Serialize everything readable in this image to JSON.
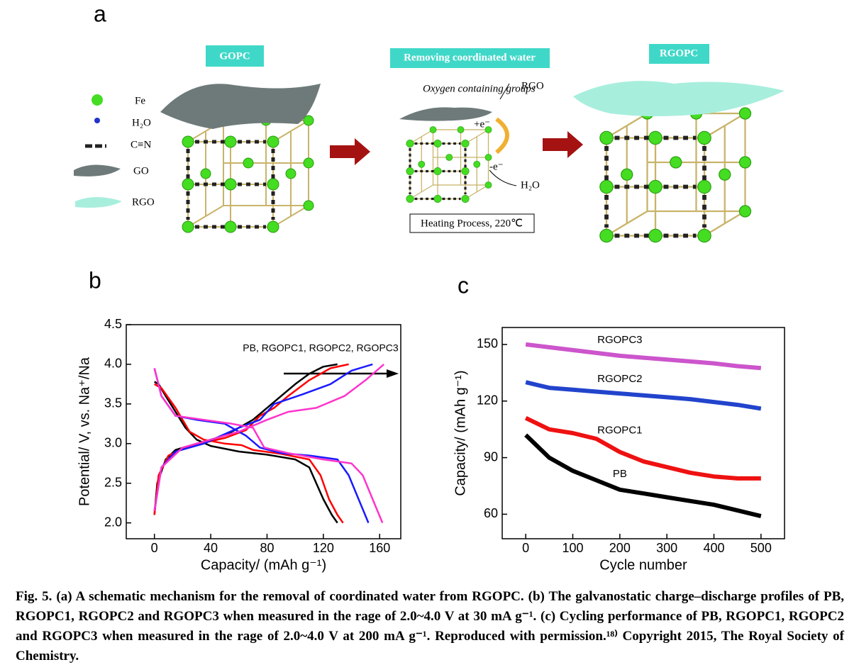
{
  "panel_a": {
    "label": "a",
    "titles": [
      "GOPC",
      "Removing coordinated water",
      "RGOPC"
    ],
    "legend": [
      "Fe",
      "H₂O",
      "C≡N",
      "GO",
      "RGO"
    ],
    "annotations": {
      "groups": "Oxygen containing groups",
      "rgo": "RGO",
      "plus_e": "+e⁻",
      "minus_e": "-e⁻",
      "water": "H₂O",
      "process": "Heating Process, 220℃"
    }
  },
  "chart_data": [
    {
      "type": "line",
      "panel_label": "b",
      "x_label": "Capacity/ (mAh g⁻¹)",
      "y_label": "Potential/ V, vs. Na⁺/Na",
      "annotation": "PB, RGOPC1, RGOPC2, RGOPC3",
      "xlim": [
        -20,
        175
      ],
      "ylim": [
        1.8,
        4.5
      ],
      "xticks": [
        0,
        40,
        80,
        120,
        160
      ],
      "yticks": [
        {
          "value": 2,
          "label": "2.0"
        },
        2.5,
        {
          "value": 3,
          "label": "3.0"
        },
        3.5,
        {
          "value": 4,
          "label": "4.0"
        },
        4.5
      ],
      "series": [
        {
          "color": "#000000",
          "x": [
            0,
            3,
            8,
            15,
            22,
            30,
            40,
            60,
            80,
            100,
            110,
            115,
            120,
            126,
            130,
            null,
            0,
            2,
            8,
            15,
            30,
            50,
            60,
            70,
            80,
            90,
            100,
            110,
            120,
            130
          ],
          "values": [
            3.78,
            3.75,
            3.6,
            3.4,
            3.2,
            3.05,
            2.97,
            2.9,
            2.86,
            2.8,
            2.7,
            2.5,
            2.3,
            2.1,
            2.0,
            null,
            2.1,
            2.5,
            2.8,
            2.92,
            3.0,
            3.1,
            3.2,
            3.3,
            3.45,
            3.6,
            3.75,
            3.88,
            3.97,
            4.0
          ]
        },
        {
          "color": "#ff0000",
          "x": [
            0,
            5,
            15,
            25,
            35,
            50,
            62,
            70,
            90,
            110,
            118,
            124,
            130,
            134,
            null,
            0,
            3,
            10,
            25,
            50,
            65,
            75,
            85,
            95,
            110,
            125,
            138
          ],
          "values": [
            3.75,
            3.7,
            3.45,
            3.15,
            3.05,
            3.0,
            2.98,
            2.92,
            2.87,
            2.8,
            2.6,
            2.3,
            2.1,
            2.0,
            null,
            2.1,
            2.6,
            2.85,
            2.97,
            3.07,
            3.17,
            3.35,
            3.45,
            3.6,
            3.8,
            3.95,
            4.0
          ]
        },
        {
          "color": "#1a1aff",
          "x": [
            0,
            5,
            15,
            30,
            50,
            65,
            75,
            90,
            110,
            130,
            138,
            145,
            152,
            null,
            0,
            5,
            15,
            35,
            60,
            75,
            85,
            105,
            125,
            140,
            155
          ],
          "values": [
            3.95,
            3.6,
            3.35,
            3.3,
            3.25,
            3.1,
            2.95,
            2.88,
            2.85,
            2.8,
            2.6,
            2.3,
            2.0,
            null,
            2.15,
            2.7,
            2.9,
            3.0,
            3.2,
            3.3,
            3.5,
            3.62,
            3.75,
            3.92,
            4.0
          ]
        },
        {
          "color": "#ff33cc",
          "x": [
            0,
            5,
            15,
            35,
            55,
            70,
            78,
            95,
            120,
            140,
            148,
            155,
            162,
            null,
            0,
            5,
            20,
            40,
            60,
            80,
            95,
            115,
            135,
            150,
            163
          ],
          "values": [
            3.95,
            3.6,
            3.35,
            3.3,
            3.25,
            3.2,
            2.95,
            2.88,
            2.8,
            2.75,
            2.6,
            2.3,
            2.0,
            null,
            2.15,
            2.7,
            2.95,
            3.05,
            3.15,
            3.3,
            3.4,
            3.45,
            3.6,
            3.8,
            4.0
          ]
        }
      ]
    },
    {
      "type": "line",
      "panel_label": "c",
      "x_label": "Cycle number",
      "y_label": "Capacity/ (mAh g⁻¹)",
      "xlim": [
        -50,
        550
      ],
      "ylim": [
        47,
        159
      ],
      "xticks": [
        0,
        100,
        200,
        300,
        400,
        500
      ],
      "yticks": [
        60,
        90,
        120,
        150
      ],
      "x": [
        0,
        50,
        100,
        150,
        200,
        250,
        300,
        350,
        400,
        450,
        500
      ],
      "series": [
        {
          "name": "RGOPC3",
          "color": "#cc55cc",
          "values": [
            150,
            148.5,
            147,
            145.5,
            144,
            143,
            142,
            141,
            140,
            138.5,
            137.5
          ]
        },
        {
          "name": "RGOPC2",
          "color": "#2244cc",
          "values": [
            130,
            127,
            126,
            125,
            124,
            123,
            122,
            121,
            119.5,
            118,
            116
          ]
        },
        {
          "name": "RGOPC1",
          "color": "#ee1111",
          "values": [
            111,
            105,
            103,
            100,
            93,
            88,
            85,
            82,
            80,
            79,
            79
          ]
        },
        {
          "name": "PB",
          "color": "#000000",
          "values": [
            102,
            90,
            83,
            78,
            73,
            71,
            69,
            67,
            65,
            62,
            59
          ]
        }
      ]
    }
  ],
  "caption": "Fig. 5. (a) A schematic mechanism for the removal of coordinated water from RGOPC. (b) The galvanostatic charge–discharge profiles of PB, RGOPC1, RGOPC2 and RGOPC3 when measured in the rage of 2.0~4.0 V at 30 mA g⁻¹. (c) Cycling performance of PB, RGOPC1, RGOPC2 and RGOPC3 when measured in the rage of 2.0~4.0 V at 200 mA g⁻¹. Reproduced with permission.¹⁸⁾ Copyright 2015, The Royal Society of Chemistry."
}
